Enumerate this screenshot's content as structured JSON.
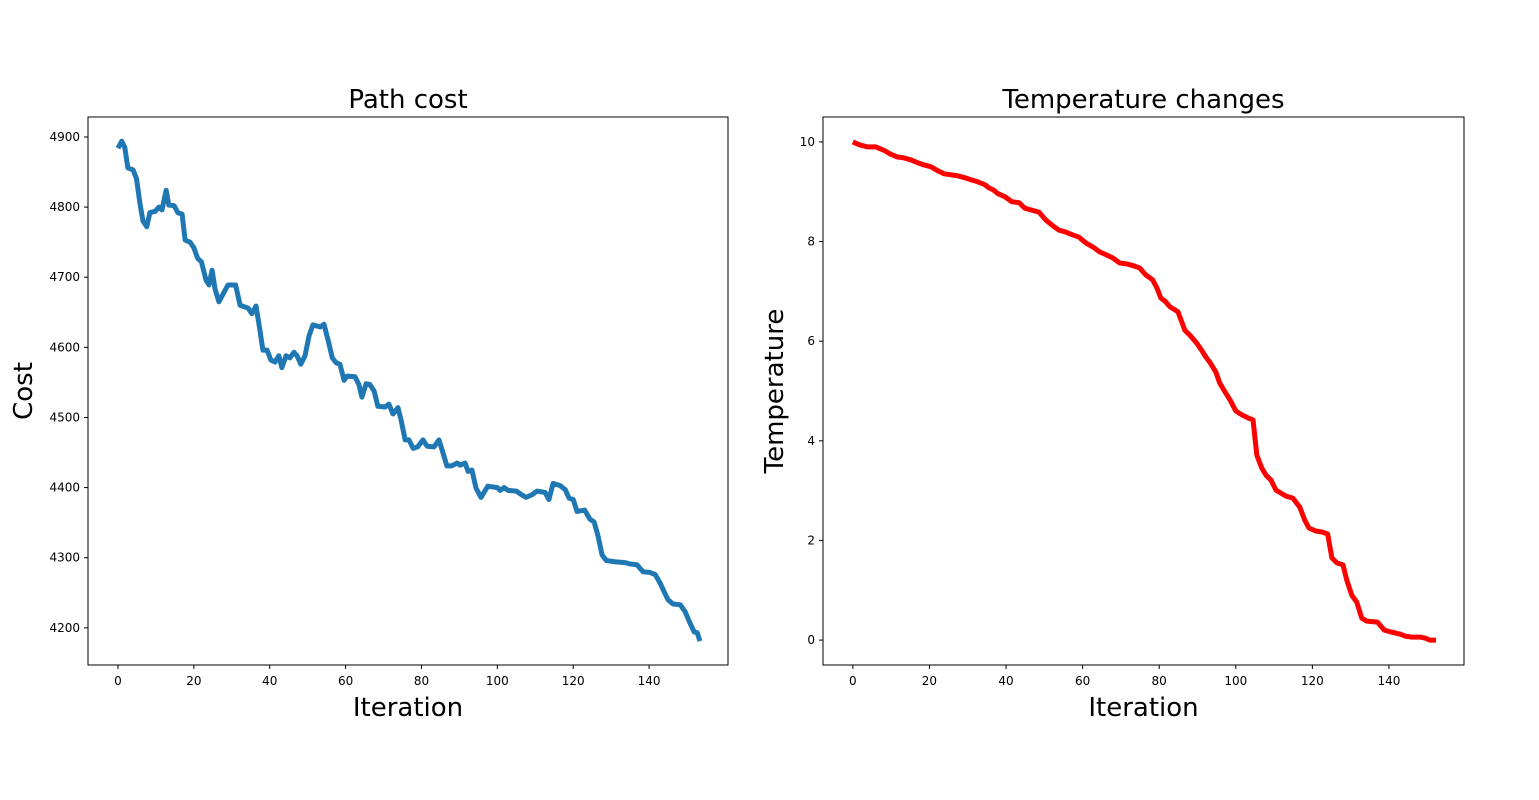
{
  "chart_data": [
    {
      "type": "line",
      "title": "Path cost",
      "x_label": "Iteration",
      "y_label": "Cost",
      "grid": false,
      "xlim": [
        -7.9,
        160.8
      ],
      "ylim": [
        4147,
        4928.5
      ],
      "xticks": [
        0,
        20,
        40,
        60,
        80,
        100,
        120,
        140
      ],
      "yticks": [
        4200,
        4300,
        4400,
        4500,
        4600,
        4700,
        4800,
        4900
      ],
      "x": [
        0,
        1,
        1.8,
        2.6,
        4,
        4.9,
        5.8,
        6.6,
        7.6,
        8.4,
        9.8,
        10.8,
        11.6,
        12.7,
        13.4,
        14.8,
        15.8,
        16.9,
        17.7,
        19,
        20,
        21,
        22,
        23.2,
        24,
        24.8,
        25.6,
        26.6,
        28,
        29,
        31,
        32.2,
        34.3,
        35.3,
        36.4,
        37.4,
        38.2,
        39.3,
        40.3,
        41.4,
        42.4,
        43.2,
        44.3,
        45.3,
        46.4,
        47.2,
        48.2,
        49.3,
        50.4,
        51.4,
        53.3,
        54.3,
        55.4,
        56.5,
        57.5,
        58.5,
        59.6,
        60.4,
        62.5,
        63.5,
        64.3,
        65.4,
        66.4,
        67.5,
        68.5,
        70.4,
        71.4,
        72.5,
        73.8,
        74.6,
        75.7,
        76.7,
        77.8,
        79,
        80.4,
        81.5,
        83.3,
        84.6,
        85.7,
        86.7,
        88,
        89.4,
        90.2,
        91.5,
        92.3,
        93.3,
        94.4,
        95.7,
        96.8,
        97.5,
        100,
        100.7,
        101.8,
        102.8,
        105,
        106.3,
        107.6,
        109.2,
        110.5,
        112.6,
        113.6,
        114.7,
        116.5,
        117.9,
        118.9,
        120,
        121,
        123,
        124.4,
        125.5,
        126.5,
        127.6,
        128.7,
        131.3,
        133.7,
        135,
        136.8,
        138.4,
        140.2,
        141.6,
        142.9,
        144,
        145,
        146.3,
        148.2,
        149.5,
        150.6,
        151.9,
        152.7,
        153.4
      ],
      "series": [
        {
          "color": "#1f77b4",
          "values": [
            4884,
            4894,
            4885,
            4856,
            4853,
            4840,
            4805,
            4780,
            4772,
            4792,
            4794,
            4800,
            4796,
            4824,
            4803,
            4802,
            4792,
            4790,
            4753,
            4750,
            4742,
            4727,
            4722,
            4696,
            4689,
            4710,
            4683,
            4665,
            4679,
            4689,
            4689,
            4660,
            4656,
            4648,
            4659,
            4625,
            4596,
            4596,
            4582,
            4579,
            4588,
            4571,
            4588,
            4585,
            4593,
            4588,
            4576,
            4588,
            4617,
            4632,
            4629,
            4633,
            4610,
            4585,
            4578,
            4576,
            4553,
            4559,
            4558,
            4547,
            4529,
            4548,
            4547,
            4538,
            4516,
            4515,
            4519,
            4505,
            4514,
            4497,
            4468,
            4468,
            4456,
            4458,
            4468,
            4459,
            4458,
            4468,
            4449,
            4431,
            4431,
            4435,
            4432,
            4435,
            4423,
            4425,
            4399,
            4386,
            4396,
            4402,
            4400,
            4396,
            4400,
            4396,
            4395,
            4390,
            4386,
            4390,
            4395,
            4393,
            4383,
            4406,
            4403,
            4397,
            4385,
            4383,
            4366,
            4368,
            4355,
            4351,
            4332,
            4304,
            4296,
            4294,
            4293,
            4291,
            4290,
            4280,
            4279,
            4276,
            4264,
            4251,
            4240,
            4234,
            4233,
            4223,
            4209,
            4194,
            4193,
            4181
          ]
        }
      ]
    },
    {
      "type": "line",
      "title": "Temperature changes",
      "x_label": "Iteration",
      "y_label": "Temperature",
      "grid": false,
      "xlim": [
        -7.8,
        159.6
      ],
      "ylim": [
        -0.5,
        10.5
      ],
      "xticks": [
        0,
        20,
        40,
        60,
        80,
        100,
        120,
        140
      ],
      "yticks": [
        0,
        2,
        4,
        6,
        8,
        10
      ],
      "x": [
        0,
        1.8,
        3.9,
        6,
        8.4,
        9.7,
        11.5,
        13.3,
        15.1,
        17,
        18.5,
        20.4,
        22.2,
        23.8,
        25.6,
        27.4,
        29.3,
        30.8,
        32.6,
        34.5,
        35.5,
        36.6,
        37.9,
        39.7,
        41.5,
        43.4,
        44.9,
        46.7,
        48.6,
        50.4,
        52,
        53.8,
        55.6,
        57.5,
        59,
        60.9,
        62.7,
        64.5,
        66.3,
        67.9,
        69.7,
        71.6,
        73.4,
        74.9,
        76.5,
        78.3,
        79.4,
        80.4,
        81.7,
        82.8,
        84.9,
        86.7,
        88,
        89.6,
        90.9,
        92.2,
        93.2,
        94.8,
        95.8,
        97.2,
        98.5,
        100,
        101.6,
        103.2,
        104.5,
        105.5,
        106.8,
        107.9,
        109.2,
        110.5,
        111.8,
        113.1,
        114.9,
        116.7,
        118,
        119.1,
        120.9,
        122.5,
        124,
        125.1,
        126.4,
        128,
        129,
        130.3,
        131.6,
        132.9,
        134.2,
        137,
        138.8,
        140.7,
        142.9,
        144.2,
        146,
        148.1,
        149.4,
        150.7,
        152.3
      ],
      "series": [
        {
          "color": "#ff0000",
          "values": [
            10,
            9.94,
            9.9,
            9.9,
            9.82,
            9.76,
            9.7,
            9.68,
            9.64,
            9.58,
            9.54,
            9.5,
            9.42,
            9.36,
            9.34,
            9.32,
            9.28,
            9.24,
            9.2,
            9.14,
            9.08,
            9.04,
            8.96,
            8.9,
            8.8,
            8.78,
            8.67,
            8.63,
            8.59,
            8.43,
            8.33,
            8.23,
            8.19,
            8.13,
            8.09,
            7.97,
            7.89,
            7.79,
            7.73,
            7.67,
            7.57,
            7.55,
            7.51,
            7.47,
            7.33,
            7.23,
            7.07,
            6.87,
            6.79,
            6.69,
            6.59,
            6.22,
            6.12,
            5.98,
            5.84,
            5.68,
            5.58,
            5.38,
            5.16,
            4.98,
            4.82,
            4.6,
            4.52,
            4.46,
            4.42,
            3.71,
            3.45,
            3.31,
            3.21,
            3.01,
            2.95,
            2.89,
            2.85,
            2.67,
            2.41,
            2.25,
            2.19,
            2.17,
            2.13,
            1.65,
            1.55,
            1.51,
            1.2,
            0.9,
            0.76,
            0.44,
            0.38,
            0.36,
            0.2,
            0.16,
            0.12,
            0.08,
            0.06,
            0.06,
            0.04,
            0,
            0
          ]
        }
      ]
    }
  ]
}
